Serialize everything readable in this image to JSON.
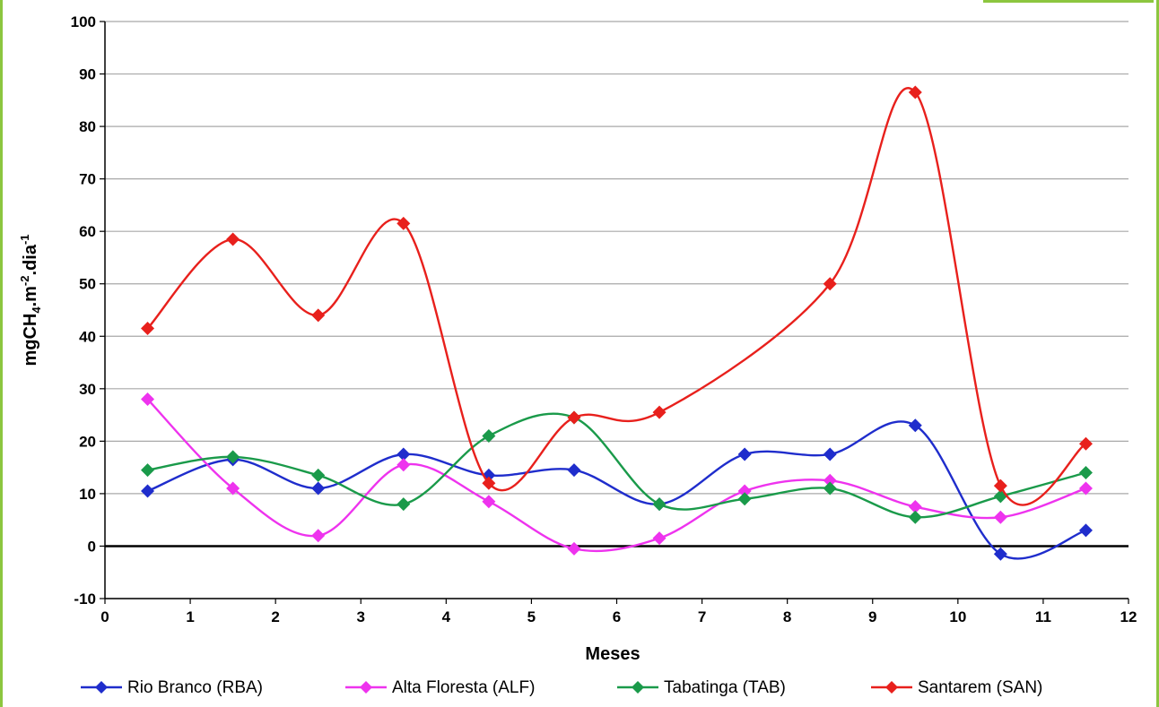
{
  "chart_data": {
    "type": "line",
    "title": "",
    "xlabel": "Meses",
    "ylabel": {
      "base": "mgCH",
      "sub": "4",
      "mid": ".m",
      "sup1": "-2",
      "tail": ".dia",
      "sup2": "-1"
    },
    "xlim": [
      0,
      12
    ],
    "ylim": [
      -10,
      100
    ],
    "x_ticks": [
      "0",
      "1",
      "2",
      "3",
      "4",
      "5",
      "6",
      "7",
      "8",
      "9",
      "10",
      "11",
      "12"
    ],
    "y_ticks": [
      "-10",
      "0",
      "10",
      "20",
      "30",
      "40",
      "50",
      "60",
      "70",
      "80",
      "90",
      "100"
    ],
    "grid": true,
    "legend_position": "bottom",
    "x": [
      0.5,
      1.5,
      2.5,
      3.5,
      4.5,
      5.5,
      6.5,
      7.5,
      8.5,
      9.5,
      10.5,
      11.5
    ],
    "series": [
      {
        "name": "Rio Branco (RBA)",
        "color": "#1f2dcc",
        "values": [
          10.5,
          16.5,
          11,
          17.5,
          13.5,
          14.5,
          8,
          17.5,
          17.5,
          23,
          -1.5,
          3
        ]
      },
      {
        "name": "Alta Floresta (ALF)",
        "color": "#ee33ee",
        "values": [
          28,
          11,
          2,
          15.5,
          8.5,
          -0.5,
          1.5,
          10.5,
          12.5,
          7.5,
          5.5,
          11
        ]
      },
      {
        "name": "Tabatinga (TAB)",
        "color": "#1a9a4a",
        "values": [
          14.5,
          17,
          13.5,
          8,
          21,
          24.5,
          8,
          9,
          11,
          5.5,
          9.5,
          14
        ]
      },
      {
        "name": "Santarem (SAN)",
        "color": "#e8201c",
        "values": [
          41.5,
          58.5,
          44,
          61.5,
          12,
          24.5,
          25.5,
          null,
          50,
          86.5,
          11.5,
          19.5
        ]
      }
    ]
  }
}
